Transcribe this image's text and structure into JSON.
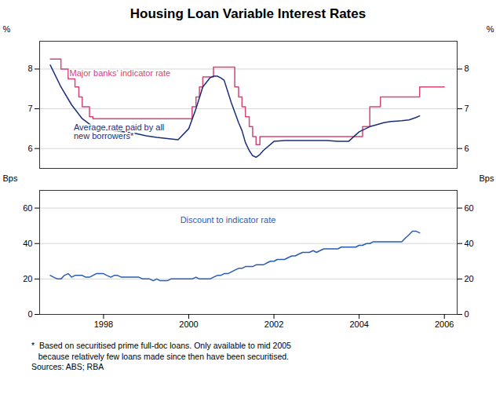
{
  "chart_data": [
    {
      "type": "line",
      "title": "Housing Loan Variable Interest Rates",
      "ylabel": "%",
      "y2label": "%",
      "xlim": [
        1996.5,
        2006.3
      ],
      "ylim": [
        5.5,
        8.7
      ],
      "yticks": [
        6,
        7,
        8
      ],
      "y2lim": [
        5.5,
        8.7
      ],
      "y2ticks": [
        6,
        7,
        8
      ],
      "grid": true,
      "tick_labels": "y",
      "series": [
        {
          "type": "step",
          "color": "#d4457a",
          "x": [
            1996.75,
            1997.0,
            1997.17,
            1997.33,
            1997.42,
            1997.5,
            1997.67,
            1997.75,
            1997.83,
            1998.0,
            1998.25,
            1998.5,
            1998.75,
            1999.0,
            1999.25,
            1999.5,
            1999.75,
            2000.0,
            2000.08,
            2000.17,
            2000.25,
            2000.33,
            2000.42,
            2000.5,
            2000.58,
            2000.67,
            2000.75,
            2000.83,
            2001.0,
            2001.08,
            2001.17,
            2001.25,
            2001.33,
            2001.42,
            2001.5,
            2001.58,
            2001.67,
            2001.75,
            2001.83,
            2002.0,
            2002.25,
            2002.5,
            2002.75,
            2003.0,
            2003.25,
            2003.5,
            2003.75,
            2004.0,
            2004.08,
            2004.25,
            2004.42,
            2004.5,
            2004.75,
            2005.0,
            2005.25,
            2005.42,
            2005.75,
            2006.0
          ],
          "values": [
            8.25,
            8.0,
            7.75,
            7.55,
            7.3,
            7.05,
            6.8,
            6.75,
            6.75,
            6.75,
            6.75,
            6.75,
            6.75,
            6.75,
            6.75,
            6.75,
            6.75,
            6.75,
            7.05,
            7.3,
            7.55,
            7.8,
            7.8,
            7.8,
            8.05,
            8.05,
            8.05,
            8.05,
            8.05,
            7.55,
            7.3,
            7.05,
            6.8,
            6.55,
            6.3,
            6.1,
            6.3,
            6.3,
            6.3,
            6.3,
            6.3,
            6.3,
            6.3,
            6.3,
            6.3,
            6.3,
            6.3,
            6.3,
            6.55,
            7.05,
            7.05,
            7.3,
            7.3,
            7.3,
            7.3,
            7.55,
            7.55,
            7.55
          ]
        },
        {
          "type": "line",
          "color": "#1a2e7a",
          "x": [
            1996.75,
            1997.0,
            1997.25,
            1997.5,
            1997.75,
            1998.0,
            1998.25,
            1998.5,
            1998.75,
            1999.0,
            1999.25,
            1999.5,
            1999.75,
            2000.0,
            2000.17,
            2000.33,
            2000.5,
            2000.58,
            2000.67,
            2000.75,
            2000.83,
            2001.0,
            2001.17,
            2001.25,
            2001.33,
            2001.42,
            2001.5,
            2001.58,
            2001.67,
            2001.75,
            2002.0,
            2002.25,
            2002.5,
            2002.75,
            2003.0,
            2003.25,
            2003.5,
            2003.75,
            2004.0,
            2004.25,
            2004.42,
            2004.58,
            2004.75,
            2005.0,
            2005.17,
            2005.33,
            2005.42
          ],
          "values": [
            8.1,
            7.55,
            7.1,
            6.75,
            6.55,
            6.48,
            6.45,
            6.42,
            6.38,
            6.32,
            6.28,
            6.25,
            6.22,
            6.5,
            7.0,
            7.55,
            7.78,
            7.82,
            7.82,
            7.78,
            7.72,
            7.15,
            6.65,
            6.45,
            6.15,
            5.95,
            5.82,
            5.78,
            5.85,
            5.95,
            6.18,
            6.2,
            6.2,
            6.2,
            6.2,
            6.2,
            6.18,
            6.18,
            6.42,
            6.55,
            6.6,
            6.65,
            6.68,
            6.7,
            6.72,
            6.78,
            6.82
          ]
        }
      ],
      "annotations": [
        {
          "text": "Major banks’ indicator rate",
          "x": 1997.2,
          "y": 7.9,
          "color": "#d4457a"
        },
        {
          "text": "Average rate paid by all\nnew borrowers*",
          "x": 1997.3,
          "y": 6.42,
          "color": "#1a2e7a"
        }
      ]
    },
    {
      "type": "line",
      "ylabel": "Bps",
      "y2label": "Bps",
      "xlim": [
        1996.5,
        2006.3
      ],
      "xticks": [
        1998,
        2000,
        2002,
        2004,
        2006
      ],
      "ylim": [
        0,
        70
      ],
      "yticks": [
        0,
        20,
        40,
        60
      ],
      "y2lim": [
        0,
        70
      ],
      "y2ticks": [
        0,
        20,
        40,
        60
      ],
      "grid": true,
      "series": [
        {
          "type": "line",
          "color": "#2a5db0",
          "x": [
            1996.75,
            1996.83,
            1996.92,
            1997.0,
            1997.08,
            1997.17,
            1997.25,
            1997.33,
            1997.42,
            1997.5,
            1997.58,
            1997.67,
            1997.75,
            1997.83,
            1997.92,
            1998.0,
            1998.08,
            1998.17,
            1998.25,
            1998.33,
            1998.42,
            1998.5,
            1998.58,
            1998.67,
            1998.75,
            1998.83,
            1998.92,
            1999.0,
            1999.08,
            1999.17,
            1999.25,
            1999.33,
            1999.42,
            1999.5,
            1999.58,
            1999.67,
            1999.75,
            1999.83,
            1999.92,
            2000.0,
            2000.08,
            2000.17,
            2000.25,
            2000.33,
            2000.42,
            2000.5,
            2000.58,
            2000.67,
            2000.75,
            2000.83,
            2000.92,
            2001.0,
            2001.08,
            2001.17,
            2001.25,
            2001.33,
            2001.42,
            2001.5,
            2001.58,
            2001.67,
            2001.75,
            2001.83,
            2001.92,
            2002.0,
            2002.08,
            2002.17,
            2002.25,
            2002.33,
            2002.42,
            2002.5,
            2002.58,
            2002.67,
            2002.75,
            2002.83,
            2002.92,
            2003.0,
            2003.08,
            2003.17,
            2003.25,
            2003.33,
            2003.42,
            2003.5,
            2003.58,
            2003.67,
            2003.75,
            2003.83,
            2003.92,
            2004.0,
            2004.08,
            2004.17,
            2004.25,
            2004.33,
            2004.42,
            2004.5,
            2004.58,
            2004.67,
            2004.75,
            2004.83,
            2004.92,
            2005.0,
            2005.08,
            2005.17,
            2005.25,
            2005.33,
            2005.42
          ],
          "values": [
            22,
            21,
            20,
            20,
            22,
            23,
            21,
            22,
            22,
            22,
            21,
            21,
            22,
            23,
            23,
            23,
            22,
            21,
            22,
            22,
            21,
            21,
            21,
            21,
            21,
            21,
            20,
            20,
            20,
            19,
            20,
            19,
            19,
            19,
            20,
            20,
            20,
            20,
            20,
            20,
            20,
            21,
            20,
            20,
            20,
            20,
            21,
            22,
            22,
            23,
            23,
            24,
            25,
            26,
            26,
            27,
            27,
            27,
            28,
            28,
            28,
            29,
            30,
            30,
            31,
            31,
            31,
            32,
            33,
            33,
            34,
            35,
            35,
            35,
            36,
            35,
            36,
            37,
            37,
            37,
            37,
            37,
            38,
            38,
            38,
            38,
            38,
            39,
            39,
            40,
            40,
            41,
            41,
            41,
            41,
            41,
            41,
            41,
            41,
            41,
            43,
            45,
            47,
            47,
            46
          ]
        }
      ],
      "annotations": [
        {
          "text": "Discount to indicator rate",
          "x": 1999.8,
          "y": 53,
          "color": "#2a5db0"
        }
      ],
      "footnote": "*  Based on securitised prime full-doc loans. Only available to mid 2005\n   because relatively few loans made since then have been securitised.\nSources: ABS; RBA"
    }
  ]
}
